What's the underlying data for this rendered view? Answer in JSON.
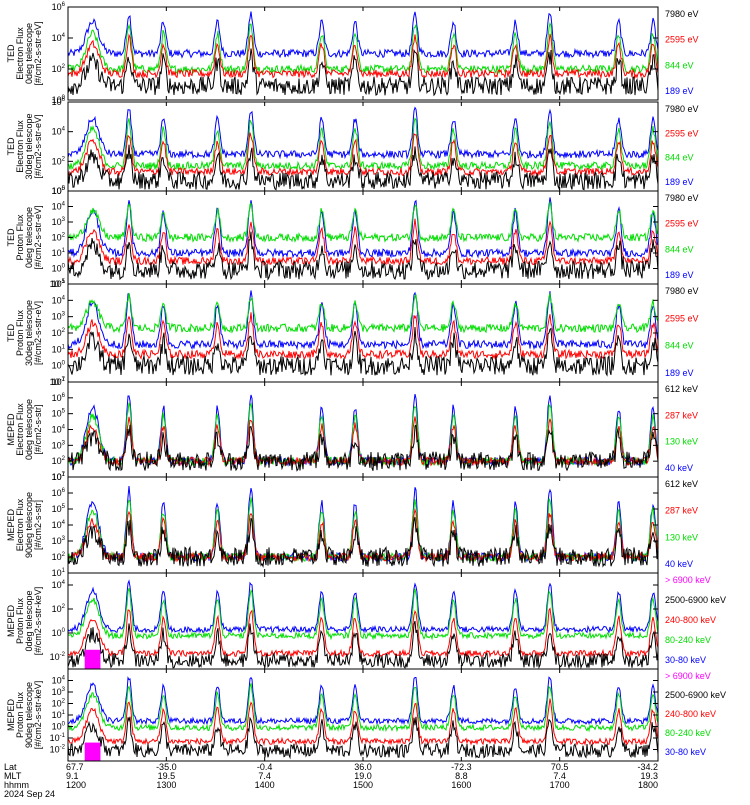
{
  "chart_data": [
    {
      "type": "line",
      "ylabel": [
        "TED",
        "Electron Flux",
        "0deg telescope",
        "[#/cm2-s-str-eV]"
      ],
      "yscale": "log",
      "ylim": [
        1,
        1000000
      ],
      "yticks": [
        {
          "v": 1,
          "m": "0"
        },
        {
          "v": 100,
          "m": "2"
        },
        {
          "v": 10000,
          "m": "4"
        },
        {
          "v": 1000000,
          "m": "6"
        }
      ],
      "baselines": {
        "blue": 1000,
        "green": 100,
        "red": 50,
        "black": 8
      },
      "series": [
        {
          "name": "7980 eV",
          "color": "#000000"
        },
        {
          "name": "2595 eV",
          "color": "#ff0000"
        },
        {
          "name": "844 eV",
          "color": "#00dd00"
        },
        {
          "name": "189 eV",
          "color": "#0000ff"
        }
      ]
    },
    {
      "type": "line",
      "ylabel": [
        "TED",
        "Electron Flux",
        "30deg telescope",
        "[#/cm2-s-str-eV]"
      ],
      "yscale": "log",
      "ylim": [
        1,
        1000000
      ],
      "yticks": [
        {
          "v": 1,
          "m": "0"
        },
        {
          "v": 100,
          "m": "2"
        },
        {
          "v": 10000,
          "m": "4"
        },
        {
          "v": 1000000,
          "m": "6"
        }
      ],
      "baselines": {
        "blue": 300,
        "green": 50,
        "red": 20,
        "black": 5
      },
      "series": [
        {
          "name": "7980 eV",
          "color": "#000000"
        },
        {
          "name": "2595 eV",
          "color": "#ff0000"
        },
        {
          "name": "844 eV",
          "color": "#00dd00"
        },
        {
          "name": "189 eV",
          "color": "#0000ff"
        }
      ]
    },
    {
      "type": "line",
      "ylabel": [
        "TED",
        "Proton Flux",
        "0deg telescope",
        "[#/cm2-s-str-eV]"
      ],
      "yscale": "log",
      "ylim": [
        0.1,
        100000
      ],
      "yticks": [
        {
          "v": 0.1,
          "m": "-1"
        },
        {
          "v": 1,
          "m": "0"
        },
        {
          "v": 10,
          "m": "1"
        },
        {
          "v": 100,
          "m": "2"
        },
        {
          "v": 1000,
          "m": "3"
        },
        {
          "v": 10000,
          "m": "4"
        },
        {
          "v": 100000,
          "m": "5"
        }
      ],
      "baselines": {
        "blue": 10,
        "green": 100,
        "red": 3,
        "black": 0.8
      },
      "series": [
        {
          "name": "7980 eV",
          "color": "#000000"
        },
        {
          "name": "2595 eV",
          "color": "#ff0000"
        },
        {
          "name": "844 eV",
          "color": "#00dd00"
        },
        {
          "name": "189 eV",
          "color": "#0000ff"
        }
      ]
    },
    {
      "type": "line",
      "ylabel": [
        "TED",
        "Proton Flux",
        "30deg telescope",
        "[#/cm2-s-str-eV]"
      ],
      "yscale": "log",
      "ylim": [
        0.1,
        100000
      ],
      "yticks": [
        {
          "v": 0.1,
          "m": "-1"
        },
        {
          "v": 1,
          "m": "0"
        },
        {
          "v": 10,
          "m": "1"
        },
        {
          "v": 100,
          "m": "2"
        },
        {
          "v": 1000,
          "m": "3"
        },
        {
          "v": 10000,
          "m": "4"
        },
        {
          "v": 100000,
          "m": "5"
        }
      ],
      "baselines": {
        "blue": 20,
        "green": 200,
        "red": 5,
        "black": 1
      },
      "series": [
        {
          "name": "7980 eV",
          "color": "#000000"
        },
        {
          "name": "2595 eV",
          "color": "#ff0000"
        },
        {
          "name": "844 eV",
          "color": "#00dd00"
        },
        {
          "name": "189 eV",
          "color": "#0000ff"
        }
      ]
    },
    {
      "type": "line",
      "ylabel": [
        "MEPED",
        "Electron Flux",
        "0deg telescope",
        "[#/cm2-s-str]"
      ],
      "yscale": "log",
      "ylim": [
        10,
        10000000
      ],
      "yticks": [
        {
          "v": 10,
          "m": "1"
        },
        {
          "v": 100,
          "m": "2"
        },
        {
          "v": 1000,
          "m": "3"
        },
        {
          "v": 10000,
          "m": "4"
        },
        {
          "v": 100000,
          "m": "5"
        },
        {
          "v": 1000000,
          "m": "6"
        },
        {
          "v": 10000000,
          "m": "7"
        }
      ],
      "baselines": {
        "blue": 100,
        "green": 100,
        "red": 100,
        "black": 100
      },
      "series": [
        {
          "name": "612 keV",
          "color": "#000000"
        },
        {
          "name": "287 keV",
          "color": "#ff0000"
        },
        {
          "name": "130 keV",
          "color": "#00dd00"
        },
        {
          "name": "40 keV",
          "color": "#0000ff"
        }
      ]
    },
    {
      "type": "line",
      "ylabel": [
        "MEPED",
        "Electron Flux",
        "90deg telescope",
        "[#/cm2-s-str]"
      ],
      "yscale": "log",
      "ylim": [
        10,
        10000000
      ],
      "yticks": [
        {
          "v": 10,
          "m": "1"
        },
        {
          "v": 100,
          "m": "2"
        },
        {
          "v": 1000,
          "m": "3"
        },
        {
          "v": 10000,
          "m": "4"
        },
        {
          "v": 100000,
          "m": "5"
        },
        {
          "v": 1000000,
          "m": "6"
        },
        {
          "v": 10000000,
          "m": "7"
        }
      ],
      "baselines": {
        "blue": 100,
        "green": 100,
        "red": 100,
        "black": 100
      },
      "series": [
        {
          "name": "612 keV",
          "color": "#000000"
        },
        {
          "name": "287 keV",
          "color": "#ff0000"
        },
        {
          "name": "130 keV",
          "color": "#00dd00"
        },
        {
          "name": "40 keV",
          "color": "#0000ff"
        }
      ]
    },
    {
      "type": "line",
      "ylabel": [
        "MEPED",
        "Proton Flux",
        "0deg telescope",
        "[#/cm2-s-str-keV]"
      ],
      "yscale": "log",
      "ylim": [
        0.001,
        100000
      ],
      "yticks": [
        {
          "v": 0.01,
          "m": "-2"
        },
        {
          "v": 1,
          "m": "0"
        },
        {
          "v": 100,
          "m": "2"
        },
        {
          "v": 10000,
          "m": "4"
        }
      ],
      "baselines": {
        "blue": 2,
        "green": 0.6,
        "red": 0.02,
        "black": 0.005
      },
      "series": [
        {
          "name": "> 6900 keV",
          "color": "#ff00ff"
        },
        {
          "name": "2500-6900 keV",
          "color": "#000000"
        },
        {
          "name": "240-800 keV",
          "color": "#ff0000"
        },
        {
          "name": "80-240 keV",
          "color": "#00dd00"
        },
        {
          "name": "30-80 keV",
          "color": "#0000ff"
        }
      ]
    },
    {
      "type": "line",
      "ylabel": [
        "MEPED",
        "Proton Flux",
        "90deg telescope",
        "[#/cm2-s-str-keV]"
      ],
      "yscale": "log",
      "ylim": [
        0.001,
        100000
      ],
      "yticks": [
        {
          "v": 0.01,
          "m": "-2"
        },
        {
          "v": 0.1,
          "m": "-1"
        },
        {
          "v": 1,
          "m": "0"
        },
        {
          "v": 10,
          "m": "1"
        },
        {
          "v": 100,
          "m": "2"
        },
        {
          "v": 1000,
          "m": "3"
        },
        {
          "v": 10000,
          "m": "4"
        }
      ],
      "baselines": {
        "blue": 3,
        "green": 0.8,
        "red": 0.05,
        "black": 0.008
      },
      "series": [
        {
          "name": "> 6900 keV",
          "color": "#ff00ff"
        },
        {
          "name": "2500-6900 keV",
          "color": "#000000"
        },
        {
          "name": "240-800 keV",
          "color": "#ff0000"
        },
        {
          "name": "80-240 keV",
          "color": "#00dd00"
        },
        {
          "name": "30-80 keV",
          "color": "#0000ff"
        }
      ]
    }
  ],
  "passes_ut": [
    12.25,
    12.62,
    12.97,
    13.52,
    13.86,
    14.58,
    14.92,
    15.53,
    15.92,
    16.55,
    16.9,
    17.6,
    17.95
  ],
  "x_axis": {
    "xlim": [
      12.0,
      18.0
    ],
    "row_labels": [
      "Lat",
      "MLT",
      "hhmm"
    ],
    "columns": [
      {
        "ut": 12.0,
        "lat": "67.7",
        "mlt": "9.1",
        "hhmm": "1200"
      },
      {
        "ut": 13.0,
        "lat": "-35.0",
        "mlt": "19.5",
        "hhmm": "1300"
      },
      {
        "ut": 14.0,
        "lat": "-0.4",
        "mlt": "7.4",
        "hhmm": "1400"
      },
      {
        "ut": 15.0,
        "lat": "36.0",
        "mlt": "19.0",
        "hhmm": "1500"
      },
      {
        "ut": 16.0,
        "lat": "-72.3",
        "mlt": "8.8",
        "hhmm": "1600"
      },
      {
        "ut": 17.0,
        "lat": "70.5",
        "mlt": "7.4",
        "hhmm": "1700"
      },
      {
        "ut": 18.0,
        "lat": "-34.2",
        "mlt": "19.3",
        "hhmm": "1800"
      }
    ],
    "date": "2024 Sep 24"
  }
}
